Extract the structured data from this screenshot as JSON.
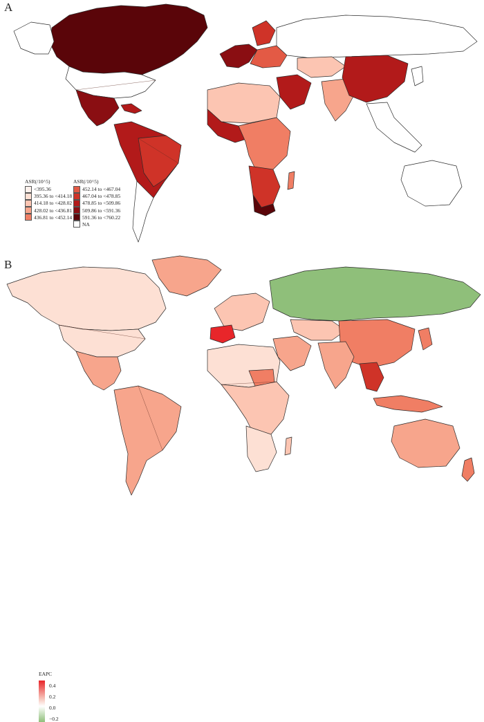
{
  "panels": [
    {
      "letter": "A",
      "legend": {
        "title_left": "ASR(/10^5)",
        "title_right": "ASR(/10^5)",
        "bins": [
          {
            "label": "<395.36",
            "color": "#fef1ec"
          },
          {
            "label": "395.36 to <414.18",
            "color": "#fde0d4"
          },
          {
            "label": "414.18 to <428.02",
            "color": "#fcc5b2"
          },
          {
            "label": "428.02 to <436.81",
            "color": "#f7a58c"
          },
          {
            "label": "436.81 to <452.14",
            "color": "#f07e64"
          },
          {
            "label": "452.14 to <467.04",
            "color": "#e35a45"
          },
          {
            "label": "467.04 to <478.85",
            "color": "#cf3328"
          },
          {
            "label": "478.85 to <509.86",
            "color": "#b21a1a"
          },
          {
            "label": "509.86 to <591.36",
            "color": "#8a0e12"
          },
          {
            "label": "591.36 to <760.22",
            "color": "#5a0509"
          },
          {
            "label": "NA",
            "color": "#ffffff"
          }
        ]
      }
    },
    {
      "letter": "B",
      "legend": {
        "title": "EAPC",
        "ticks": [
          "0.4",
          "0.2",
          "0.0",
          "−0.2"
        ],
        "colors": {
          "max": "#e8262a",
          "mid": "#ffffff",
          "min": "#8fbf7a"
        }
      }
    }
  ]
}
